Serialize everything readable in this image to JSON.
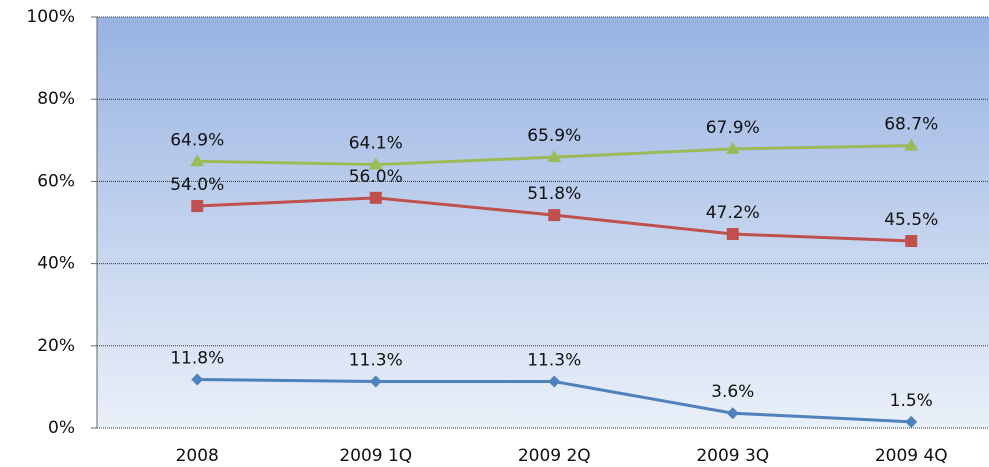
{
  "chart_data": {
    "type": "line",
    "categories": [
      "2008",
      "2009 1Q",
      "2009 2Q",
      "2009 3Q",
      "2009 4Q"
    ],
    "series": [
      {
        "color": "#9bbb59",
        "marker": "triangle",
        "values": [
          64.9,
          64.1,
          65.9,
          67.9,
          68.7
        ],
        "value_labels": [
          "64.9%",
          "64.1%",
          "65.9%",
          "67.9%",
          "68.7%"
        ]
      },
      {
        "color": "#c0504d",
        "marker": "square",
        "values": [
          54.0,
          56.0,
          51.8,
          47.2,
          45.5
        ],
        "value_labels": [
          "54.0%",
          "56.0%",
          "51.8%",
          "47.2%",
          "45.5%"
        ]
      },
      {
        "color": "#4f81bd",
        "marker": "diamond",
        "values": [
          11.8,
          11.3,
          11.3,
          3.6,
          1.5
        ],
        "value_labels": [
          "11.8%",
          "11.3%",
          "11.3%",
          "3.6%",
          "1.5%"
        ]
      }
    ],
    "ylim": [
      0,
      100
    ],
    "yticks": [
      {
        "value": 0,
        "label": "0%"
      },
      {
        "value": 20,
        "label": "20%"
      },
      {
        "value": 40,
        "label": "40%"
      },
      {
        "value": 60,
        "label": "60%"
      },
      {
        "value": 80,
        "label": "80%"
      },
      {
        "value": 100,
        "label": "100%"
      }
    ],
    "grid": true
  }
}
